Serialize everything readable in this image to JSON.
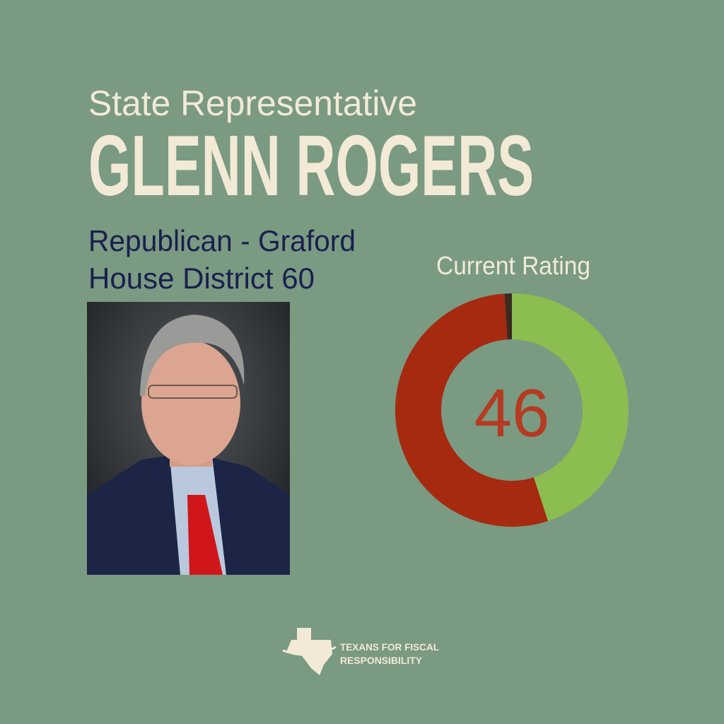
{
  "header": {
    "subtitle": "State Representative",
    "name": "GLENN ROGERS"
  },
  "details": [
    "Republican - Graford",
    "House District 60"
  ],
  "chart_data": {
    "type": "donut",
    "title": "Current Rating",
    "center_value": 46,
    "categories": [
      null,
      null,
      null
    ],
    "values": [
      45,
      54,
      1
    ],
    "colors": [
      "#8bbd50",
      "#a52a10",
      "#3a2a20"
    ]
  },
  "footer": {
    "logo_text": [
      "TEXANS FOR FISCAL",
      "RESPONSIBILITY"
    ]
  }
}
